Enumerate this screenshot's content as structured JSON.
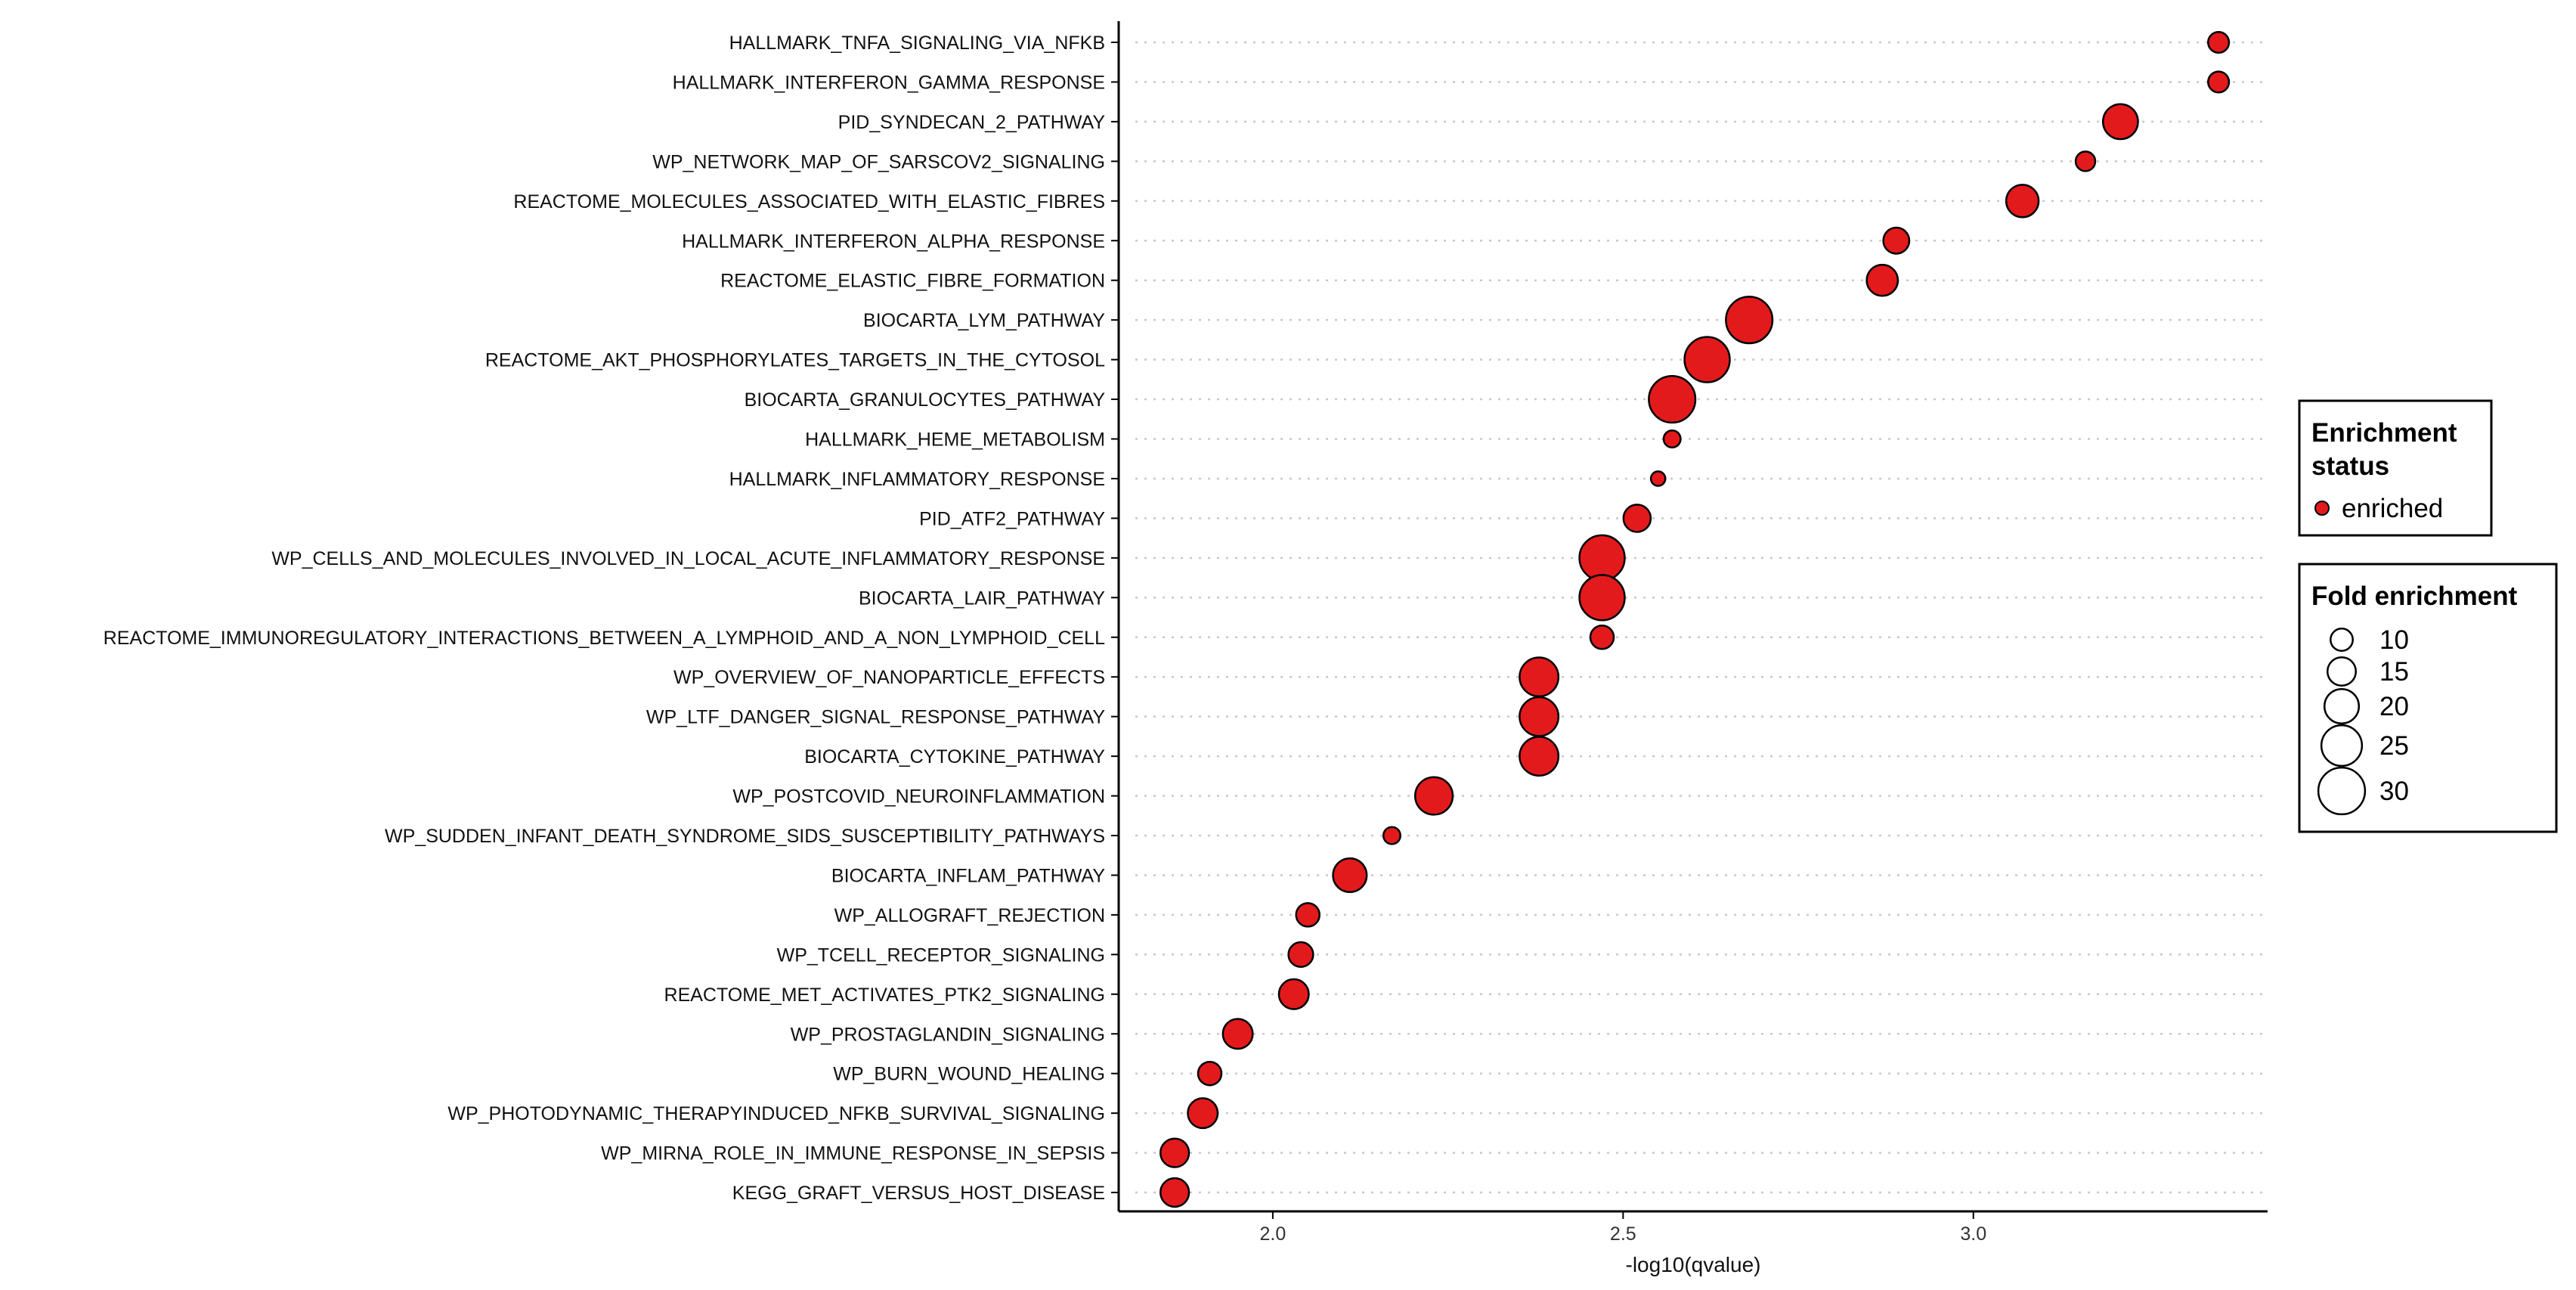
{
  "chart_data": {
    "type": "scatter",
    "title": "",
    "xlabel": "-log10(qvalue)",
    "ylabel": "",
    "xlim": [
      1.78,
      3.42
    ],
    "xticks": [
      2.0,
      2.5,
      3.0
    ],
    "xtick_labels": [
      "2.0",
      "2.5",
      "3.0"
    ],
    "grid": "dotted horizontal guides",
    "point_color": "#e31a1c",
    "categories": [
      "HALLMARK_TNFA_SIGNALING_VIA_NFKB",
      "HALLMARK_INTERFERON_GAMMA_RESPONSE",
      "PID_SYNDECAN_2_PATHWAY",
      "WP_NETWORK_MAP_OF_SARSCOV2_SIGNALING",
      "REACTOME_MOLECULES_ASSOCIATED_WITH_ELASTIC_FIBRES",
      "HALLMARK_INTERFERON_ALPHA_RESPONSE",
      "REACTOME_ELASTIC_FIBRE_FORMATION",
      "BIOCARTA_LYM_PATHWAY",
      "REACTOME_AKT_PHOSPHORYLATES_TARGETS_IN_THE_CYTOSOL",
      "BIOCARTA_GRANULOCYTES_PATHWAY",
      "HALLMARK_HEME_METABOLISM",
      "HALLMARK_INFLAMMATORY_RESPONSE",
      "PID_ATF2_PATHWAY",
      "WP_CELLS_AND_MOLECULES_INVOLVED_IN_LOCAL_ACUTE_INFLAMMATORY_RESPONSE",
      "BIOCARTA_LAIR_PATHWAY",
      "REACTOME_IMMUNOREGULATORY_INTERACTIONS_BETWEEN_A_LYMPHOID_AND_A_NON_LYMPHOID_CELL",
      "WP_OVERVIEW_OF_NANOPARTICLE_EFFECTS",
      "WP_LTF_DANGER_SIGNAL_RESPONSE_PATHWAY",
      "BIOCARTA_CYTOKINE_PATHWAY",
      "WP_POSTCOVID_NEUROINFLAMMATION",
      "WP_SUDDEN_INFANT_DEATH_SYNDROME_SIDS_SUSCEPTIBILITY_PATHWAYS",
      "BIOCARTA_INFLAM_PATHWAY",
      "WP_ALLOGRAFT_REJECTION",
      "WP_TCELL_RECEPTOR_SIGNALING",
      "REACTOME_MET_ACTIVATES_PTK2_SIGNALING",
      "WP_PROSTAGLANDIN_SIGNALING",
      "WP_BURN_WOUND_HEALING",
      "WP_PHOTODYNAMIC_THERAPYINDUCED_NFKB_SURVIVAL_SIGNALING",
      "WP_MIRNA_ROLE_IN_IMMUNE_RESPONSE_IN_SEPSIS",
      "KEGG_GRAFT_VERSUS_HOST_DISEASE"
    ],
    "x": [
      3.35,
      3.35,
      3.21,
      3.16,
      3.07,
      2.89,
      2.87,
      2.68,
      2.62,
      2.57,
      2.57,
      2.55,
      2.52,
      2.47,
      2.47,
      2.47,
      2.38,
      2.38,
      2.38,
      2.23,
      2.17,
      2.11,
      2.05,
      2.04,
      2.03,
      1.95,
      1.91,
      1.9,
      1.86,
      1.86
    ],
    "fold_enrichment": [
      8,
      8,
      19,
      7,
      17,
      12,
      16,
      28,
      27,
      28,
      5,
      3,
      13,
      27,
      27,
      10,
      22,
      22,
      22,
      21,
      5,
      18,
      10,
      11,
      15,
      15,
      10,
      15,
      14,
      14
    ],
    "status": "enriched",
    "legend_position": "right"
  },
  "legend": {
    "status_title_line1": "Enrichment",
    "status_title_line2": "status",
    "status_item": "enriched",
    "size_title": "Fold enrichment",
    "size_items": [
      "10",
      "15",
      "20",
      "25",
      "30"
    ]
  }
}
